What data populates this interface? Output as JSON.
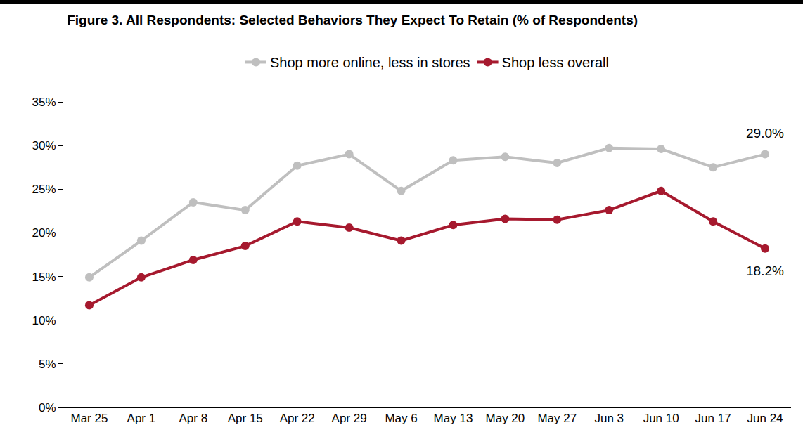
{
  "chart_data": {
    "type": "line",
    "title": "Figure 3. All Respondents: Selected Behaviors They Expect To Retain (% of Respondents)",
    "categories": [
      "Mar 25",
      "Apr 1",
      "Apr 8",
      "Apr 15",
      "Apr 22",
      "Apr 29",
      "May 6",
      "May 13",
      "May 20",
      "May 27",
      "Jun 3",
      "Jun 10",
      "Jun 17",
      "Jun 24"
    ],
    "series": [
      {
        "name": "Shop more online, less in stores",
        "color": "#bfbfbf",
        "values": [
          14.9,
          19.1,
          23.5,
          22.6,
          27.7,
          29.0,
          24.8,
          28.3,
          28.7,
          28.0,
          29.7,
          29.6,
          27.5,
          29.0
        ]
      },
      {
        "name": "Shop less overall",
        "color": "#a6192e",
        "values": [
          11.7,
          14.9,
          16.9,
          18.5,
          21.3,
          20.6,
          19.1,
          20.9,
          21.6,
          21.5,
          22.6,
          24.8,
          21.3,
          18.2
        ]
      }
    ],
    "annotations": [
      {
        "x": "Jun 24",
        "y": 29.0,
        "text": "29.0%"
      },
      {
        "x": "Jun 24",
        "y": 18.2,
        "text": "18.2%"
      }
    ],
    "ylim": [
      0,
      35
    ],
    "yticks": [
      {
        "value": 0,
        "label": "0%"
      },
      {
        "value": 5,
        "label": "5%"
      },
      {
        "value": 10,
        "label": "10%"
      },
      {
        "value": 15,
        "label": "15%"
      },
      {
        "value": 20,
        "label": "20%"
      },
      {
        "value": 25,
        "label": "25%"
      },
      {
        "value": 30,
        "label": "30%"
      },
      {
        "value": 35,
        "label": "35%"
      }
    ],
    "grid": false,
    "legend": "top",
    "marker": "circle",
    "line_style": "solid"
  }
}
